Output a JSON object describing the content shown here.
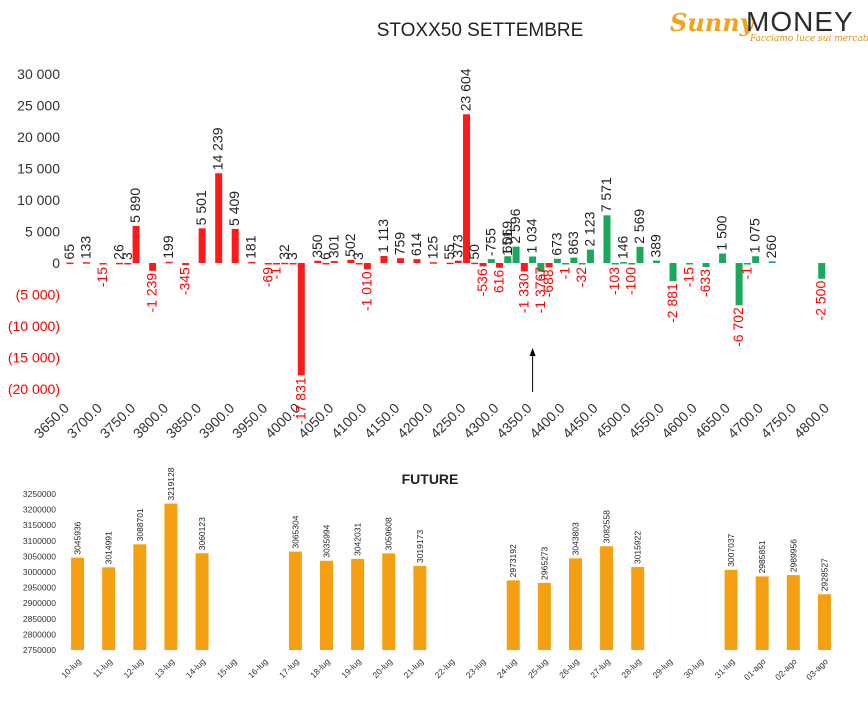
{
  "logo": {
    "brand_sunny": "Sunny",
    "brand_money": "MONEY",
    "tagline": "Facciamo luce sui mercati"
  },
  "colors": {
    "positive_top": "#1aa85c",
    "negative_top": "#ff1a1a",
    "future_bar": "#f5a012",
    "axis_text": "#333333",
    "negative_text": "#ff0000"
  },
  "chart_data": [
    {
      "type": "bar",
      "title": "STOXX50 SETTEMBRE",
      "ylim": [
        -20000,
        30000
      ],
      "yticks": [
        "30 000",
        "25 000",
        "20 000",
        "15 000",
        "10 000",
        "5 000",
        "0",
        "(5 000)",
        "(10 000)",
        "(15 000)",
        "(20 000)"
      ],
      "xticks": [
        "3650.0",
        "3700.0",
        "3750.0",
        "3800.0",
        "3850.0",
        "3900.0",
        "3950.0",
        "4000.0",
        "4050.0",
        "4100.0",
        "4150.0",
        "4200.0",
        "4250.0",
        "4300.0",
        "4350.0",
        "4400.0",
        "4450.0",
        "4500.0",
        "4550.0",
        "4600.0",
        "4650.0",
        "4700.0",
        "4750.0",
        "4800.0"
      ],
      "annotation": "arrow at 4350",
      "series": [
        {
          "color": "red",
          "points": [
            {
              "x": 3650,
              "v": 65
            },
            {
              "x": 3675,
              "v": 133
            },
            {
              "x": 3700,
              "v": -15
            },
            {
              "x": 3725,
              "v": 26
            },
            {
              "x": 3737.5,
              "v": 3
            },
            {
              "x": 3750,
              "v": 5890
            },
            {
              "x": 3775,
              "v": -1239
            },
            {
              "x": 3800,
              "v": 199
            },
            {
              "x": 3825,
              "v": -345
            },
            {
              "x": 3850,
              "v": 5501
            },
            {
              "x": 3875,
              "v": 14239
            },
            {
              "x": 3900,
              "v": 5409
            },
            {
              "x": 3925,
              "v": 181
            },
            {
              "x": 3950,
              "v": -69
            },
            {
              "x": 3962.5,
              "v": -1
            },
            {
              "x": 3975,
              "v": 32
            },
            {
              "x": 3987.5,
              "v": 3
            },
            {
              "x": 4000,
              "v": -17831
            },
            {
              "x": 4025,
              "v": 350
            },
            {
              "x": 4037.5,
              "v": 6
            },
            {
              "x": 4050,
              "v": 301
            },
            {
              "x": 4075,
              "v": 502
            },
            {
              "x": 4087.5,
              "v": 3
            },
            {
              "x": 4100,
              "v": -1010
            },
            {
              "x": 4125,
              "v": 1113
            },
            {
              "x": 4150,
              "v": 759
            },
            {
              "x": 4175,
              "v": 614
            },
            {
              "x": 4200,
              "v": 125
            },
            {
              "x": 4225,
              "v": 55
            },
            {
              "x": 4237.5,
              "v": 373
            },
            {
              "x": 4250,
              "v": 23604
            },
            {
              "x": 4262.5,
              "v": 50
            },
            {
              "x": 4275,
              "v": -536
            },
            {
              "x": 4300,
              "v": -755
            },
            {
              "x": 4312.5,
              "v": 651
            },
            {
              "x": 4337.5,
              "v": -1330
            },
            {
              "x": 4362.5,
              "v": -7
            },
            {
              "x": 4375,
              "v": -688
            }
          ]
        },
        {
          "color": "green",
          "points": [
            {
              "x": 4287.5,
              "v": 616
            },
            {
              "x": 4312.5,
              "v": 1069
            },
            {
              "x": 4325,
              "v": 2596
            },
            {
              "x": 4350,
              "v": 1034
            },
            {
              "x": 4362.5,
              "v": -1376
            },
            {
              "x": 4387.5,
              "v": 673
            },
            {
              "x": 4400,
              "v": -1
            },
            {
              "x": 4412.5,
              "v": 863
            },
            {
              "x": 4425,
              "v": -32
            },
            {
              "x": 4437.5,
              "v": 2123
            },
            {
              "x": 4462.5,
              "v": 7571
            },
            {
              "x": 4475,
              "v": -103
            },
            {
              "x": 4487.5,
              "v": 146
            },
            {
              "x": 4500,
              "v": -100
            },
            {
              "x": 4512.5,
              "v": 2569
            },
            {
              "x": 4537.5,
              "v": 389
            },
            {
              "x": 4562.5,
              "v": -2881
            },
            {
              "x": 4587.5,
              "v": -15
            },
            {
              "x": 4612.5,
              "v": -633
            },
            {
              "x": 4637.5,
              "v": 1500
            },
            {
              "x": 4662.5,
              "v": -6702
            },
            {
              "x": 4675,
              "v": -1
            },
            {
              "x": 4687.5,
              "v": 1075
            },
            {
              "x": 4712.5,
              "v": 260
            },
            {
              "x": 4787.5,
              "v": -2500
            }
          ]
        }
      ],
      "labels": [
        "65",
        "133",
        "-15",
        "26",
        "3",
        "5 890",
        "-1 239",
        "199",
        "-345",
        "5 501",
        "14 239",
        "5 409",
        "181",
        "-69",
        "-1",
        "32",
        "3",
        "-17 831",
        "350",
        "6",
        "301",
        "502",
        "3",
        "-1 010",
        "1 113",
        "759",
        "614",
        "125",
        "55",
        "373",
        "23 604",
        "50",
        "-536",
        "-755",
        "616",
        "1 069",
        "651",
        "2 596",
        "-1 330",
        "1 034",
        "-7",
        "-1 376",
        "-688",
        "673",
        "-1",
        "863",
        "-32",
        "2 123",
        "7 571",
        "-103",
        "146",
        "-100",
        "2 569",
        "389",
        "-2 881",
        "-15",
        "-633",
        "1 500",
        "-6 702",
        "-1",
        "1 075",
        "260",
        "-2 500"
      ]
    },
    {
      "type": "bar",
      "title": "FUTURE",
      "ylim": [
        2750000,
        3250000
      ],
      "yticks": [
        "3250000",
        "3200000",
        "3150000",
        "3100000",
        "3050000",
        "3000000",
        "2950000",
        "2900000",
        "2850000",
        "2800000",
        "2750000"
      ],
      "categories": [
        "10-lug",
        "11-lug",
        "12-lug",
        "13-lug",
        "14-lug",
        "15-lug",
        "16-lug",
        "17-lug",
        "18-lug",
        "19-lug",
        "20-lug",
        "21-lug",
        "22-lug",
        "23-lug",
        "24-lug",
        "25-lug",
        "26-lug",
        "27-lug",
        "28-lug",
        "29-lug",
        "30-lug",
        "31-lug",
        "01-ago",
        "02-ago",
        "03-ago"
      ],
      "values": [
        3045936,
        3014991,
        3088701,
        3219128,
        3060123,
        null,
        null,
        3065304,
        3035994,
        3042031,
        3059608,
        3019173,
        null,
        null,
        2973192,
        2965273,
        3043803,
        3082558,
        3015922,
        null,
        null,
        3007037,
        2985851,
        2989956,
        2928527
      ],
      "value_labels": [
        "3045936",
        "3014991",
        "3088701",
        "3219128",
        "3060123",
        "",
        "",
        "3065304",
        "3035994",
        "3042031",
        "3059608",
        "3019173",
        "",
        "",
        "2973192",
        "2965273",
        "3043803",
        "3082558",
        "3015922",
        "",
        "",
        "3007037",
        "2985851",
        "2989956",
        "2928527"
      ]
    }
  ]
}
